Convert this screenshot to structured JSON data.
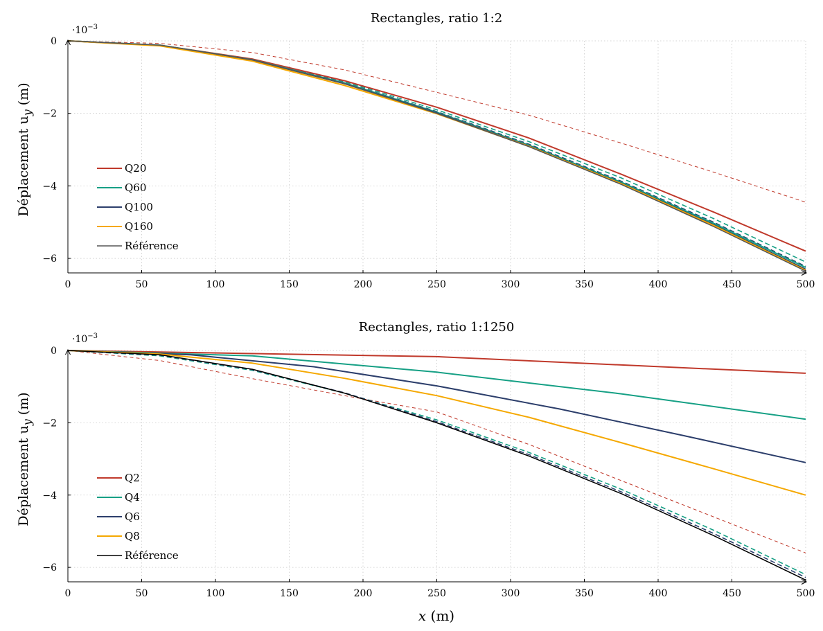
{
  "chart_data": [
    {
      "type": "line",
      "title": "Rectangles, ratio 1:2",
      "ylabel": "Déplacement u",
      "ylabel_sub": "y",
      "ylabel_unit": "(m)",
      "xlabel": "",
      "scale_label": "·10",
      "scale_exp": "−3",
      "xlim": [
        0,
        500
      ],
      "ylim": [
        -6.4,
        0
      ],
      "xticks": [
        0,
        50,
        100,
        150,
        200,
        250,
        300,
        350,
        400,
        450,
        500
      ],
      "xtick_labels": [
        "0",
        "50",
        "100",
        "150",
        "200",
        "250",
        "300",
        "350",
        "400",
        "450",
        "500"
      ],
      "yticks": [
        0,
        -2,
        -4,
        -6
      ],
      "ytick_labels": [
        "0",
        "−2",
        "−4",
        "−6"
      ],
      "grid": true,
      "legend_position": "bottom-left",
      "series": [
        {
          "name": "Q20",
          "color": "#c0392b",
          "dash": "solid",
          "width": 2,
          "x": [
            0,
            62.5,
            125,
            187.5,
            250,
            312.5,
            375,
            437.5,
            500
          ],
          "y": [
            0,
            -0.12,
            -0.5,
            -1.1,
            -1.83,
            -2.68,
            -3.68,
            -4.72,
            -5.8
          ]
        },
        {
          "name": "Q60",
          "color": "#16a085",
          "dash": "solid",
          "width": 2,
          "x": [
            0,
            62.5,
            125,
            187.5,
            250,
            312.5,
            375,
            437.5,
            500
          ],
          "y": [
            0,
            -0.12,
            -0.52,
            -1.16,
            -1.97,
            -2.88,
            -3.9,
            -5.03,
            -6.25
          ]
        },
        {
          "name": "Q100",
          "color": "#2c3e6b",
          "dash": "solid",
          "width": 2,
          "x": [
            0,
            62.5,
            125,
            187.5,
            250,
            312.5,
            375,
            437.5,
            500
          ],
          "y": [
            0,
            -0.13,
            -0.53,
            -1.18,
            -1.99,
            -2.9,
            -3.93,
            -5.07,
            -6.3
          ]
        },
        {
          "name": "Q160",
          "color": "#f5a800",
          "dash": "solid",
          "width": 2,
          "x": [
            0,
            62.5,
            125,
            187.5,
            250,
            312.5,
            375,
            437.5,
            500
          ],
          "y": [
            0,
            -0.14,
            -0.56,
            -1.23,
            -2.01,
            -2.91,
            -3.94,
            -5.09,
            -6.33
          ]
        },
        {
          "name": "Référence",
          "color": "#555555",
          "dash": "solid",
          "width": 1.5,
          "x": [
            0,
            62.5,
            125,
            187.5,
            250,
            312.5,
            375,
            437.5,
            500
          ],
          "y": [
            0,
            -0.12,
            -0.52,
            -1.18,
            -2.0,
            -2.92,
            -3.96,
            -5.12,
            -6.35
          ]
        },
        {
          "name": "",
          "color": "#c0392b",
          "dash": "dashed",
          "width": 1,
          "x": [
            0,
            62.5,
            125,
            187.5,
            250,
            312.5,
            375,
            437.5,
            500
          ],
          "y": [
            0,
            -0.07,
            -0.32,
            -0.8,
            -1.42,
            -2.05,
            -2.82,
            -3.62,
            -4.45
          ]
        },
        {
          "name": "",
          "color": "#16a085",
          "dash": "dashed",
          "width": 1.6,
          "x": [
            0,
            62.5,
            125,
            187.5,
            250,
            312.5,
            375,
            437.5,
            500
          ],
          "y": [
            0,
            -0.12,
            -0.5,
            -1.12,
            -1.9,
            -2.78,
            -3.78,
            -4.9,
            -6.1
          ]
        },
        {
          "name": "",
          "color": "#2c3e6b",
          "dash": "dashed",
          "width": 1.6,
          "x": [
            0,
            62.5,
            125,
            187.5,
            250,
            312.5,
            375,
            437.5,
            500
          ],
          "y": [
            0,
            -0.12,
            -0.51,
            -1.15,
            -1.95,
            -2.85,
            -3.87,
            -5.0,
            -6.22
          ]
        }
      ]
    },
    {
      "type": "line",
      "title": "Rectangles, ratio 1:1250",
      "ylabel": "Déplacement u",
      "ylabel_sub": "y",
      "ylabel_unit": "(m)",
      "xlabel": "x",
      "xlabel_unit": "(m)",
      "scale_label": "·10",
      "scale_exp": "−3",
      "xlim": [
        0,
        500
      ],
      "ylim": [
        -6.4,
        0
      ],
      "xticks": [
        0,
        50,
        100,
        150,
        200,
        250,
        300,
        350,
        400,
        450,
        500
      ],
      "xtick_labels": [
        "0",
        "50",
        "100",
        "150",
        "200",
        "250",
        "300",
        "350",
        "400",
        "450",
        "500"
      ],
      "yticks": [
        0,
        -2,
        -4,
        -6
      ],
      "ytick_labels": [
        "0",
        "−2",
        "−4",
        "−6"
      ],
      "grid": true,
      "legend_position": "bottom-left",
      "series": [
        {
          "name": "Q2",
          "color": "#c0392b",
          "dash": "solid",
          "width": 2,
          "x": [
            0,
            250,
            500
          ],
          "y": [
            0,
            -0.17,
            -0.63
          ]
        },
        {
          "name": "Q4",
          "color": "#16a085",
          "dash": "solid",
          "width": 2,
          "x": [
            0,
            125,
            250,
            375,
            500
          ],
          "y": [
            0,
            -0.15,
            -0.6,
            -1.2,
            -1.9
          ]
        },
        {
          "name": "Q6",
          "color": "#2c3e6b",
          "dash": "solid",
          "width": 2,
          "x": [
            0,
            83.33,
            166.67,
            250,
            333.33,
            416.67,
            500
          ],
          "y": [
            0,
            -0.12,
            -0.45,
            -0.98,
            -1.62,
            -2.35,
            -3.1
          ]
        },
        {
          "name": "Q8",
          "color": "#f5a800",
          "dash": "solid",
          "width": 2,
          "x": [
            0,
            62.5,
            125,
            187.5,
            250,
            312.5,
            375,
            437.5,
            500
          ],
          "y": [
            0,
            -0.1,
            -0.35,
            -0.77,
            -1.25,
            -1.85,
            -2.55,
            -3.27,
            -4.0
          ]
        },
        {
          "name": "Référence",
          "color": "#000000",
          "dash": "solid",
          "width": 1.5,
          "x": [
            0,
            62.5,
            125,
            187.5,
            250,
            312.5,
            375,
            437.5,
            500
          ],
          "y": [
            0,
            -0.12,
            -0.52,
            -1.18,
            -2.0,
            -2.92,
            -3.96,
            -5.12,
            -6.35
          ]
        },
        {
          "name": "",
          "color": "#c0392b",
          "dash": "dashed",
          "width": 1,
          "x": [
            0,
            62.5,
            125,
            187.5,
            250,
            312.5,
            375,
            437.5,
            500
          ],
          "y": [
            0,
            -0.28,
            -0.78,
            -1.25,
            -1.7,
            -2.6,
            -3.6,
            -4.6,
            -5.6
          ]
        },
        {
          "name": "",
          "color": "#16a085",
          "dash": "dashed",
          "width": 1.6,
          "x": [
            0,
            62.5,
            125,
            187.5,
            250,
            312.5,
            375,
            437.5,
            500
          ],
          "y": [
            0,
            -0.15,
            -0.55,
            -1.18,
            -1.92,
            -2.82,
            -3.84,
            -4.97,
            -6.2
          ]
        },
        {
          "name": "",
          "color": "#2c3e6b",
          "dash": "dashed",
          "width": 1.6,
          "x": [
            0,
            62.5,
            125,
            187.5,
            250,
            312.5,
            375,
            437.5,
            500
          ],
          "y": [
            0,
            -0.13,
            -0.53,
            -1.17,
            -1.97,
            -2.88,
            -3.91,
            -5.06,
            -6.28
          ]
        }
      ]
    }
  ]
}
